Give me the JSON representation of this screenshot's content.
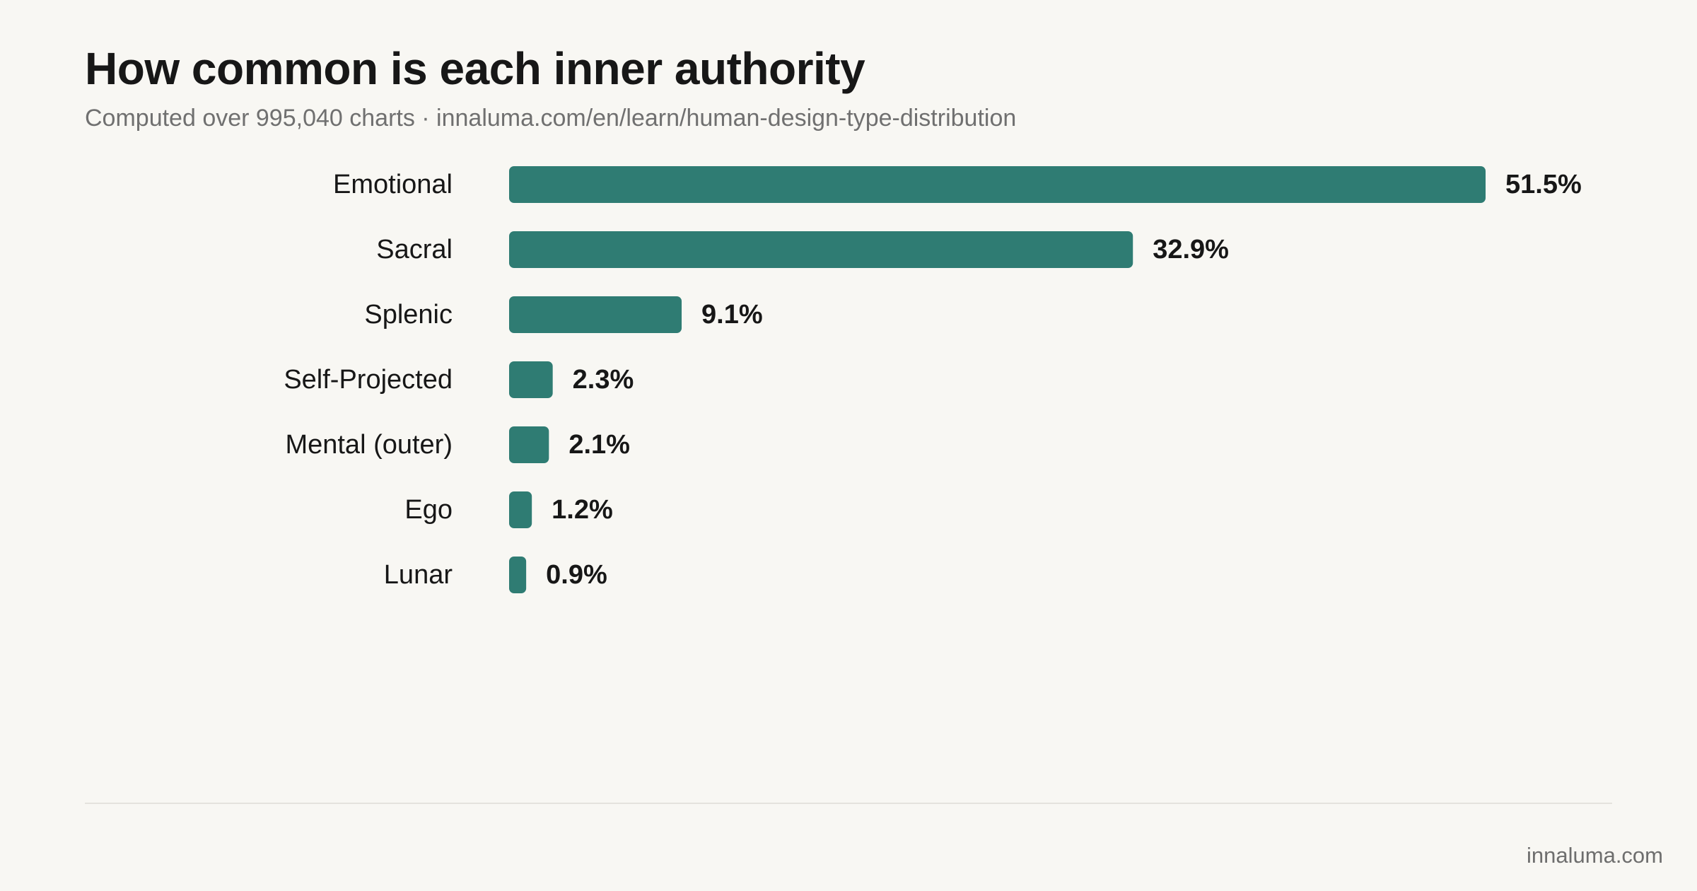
{
  "header": {
    "title": "How common is each inner authority",
    "subtitle": "Computed over 995,040 charts · innaluma.com/en/learn/human-design-type-distribution"
  },
  "footer": {
    "brand": "innaluma.com"
  },
  "colors": {
    "bar": "#2f7c73",
    "background": "#f8f7f3",
    "label": "#171717",
    "value": "#171717"
  },
  "chart_data": {
    "type": "bar",
    "orientation": "horizontal",
    "title": "How common is each inner authority",
    "subtitle": "Computed over 995,040 charts · innaluma.com/en/learn/human-design-type-distribution",
    "categories": [
      "Emotional",
      "Sacral",
      "Splenic",
      "Self-Projected",
      "Mental (outer)",
      "Ego",
      "Lunar"
    ],
    "values": [
      51.5,
      32.9,
      9.1,
      2.3,
      2.1,
      1.2,
      0.9
    ],
    "value_labels": [
      "51.5%",
      "32.9%",
      "9.1%",
      "2.3%",
      "2.1%",
      "1.2%",
      "0.9%"
    ],
    "xlabel": "",
    "ylabel": "",
    "xlim": [
      0,
      51.5
    ],
    "grid": false,
    "legend": "none"
  }
}
